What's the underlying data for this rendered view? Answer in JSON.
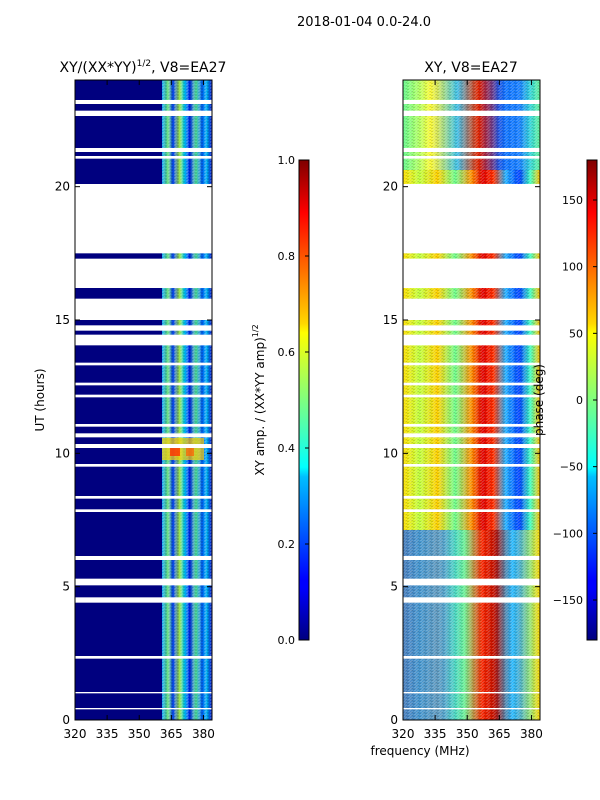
{
  "suptitle": "2018-01-04 0.0-24.0",
  "xlabel_shared": "frequency (MHz)",
  "colors": {
    "background": "#00007f",
    "gap": "#ffffff"
  },
  "chart_data": [
    {
      "type": "heatmap",
      "title": "XY/(XX*YY)^1/2, V8=EA27",
      "title_main": "XY/(XX*YY)",
      "title_sup": "1/2",
      "title_suffix": ", V8=EA27",
      "xlabel": "",
      "ylabel": "UT (hours)",
      "x_ticks": [
        320,
        335,
        350,
        365,
        380
      ],
      "y_ticks": [
        0,
        5,
        10,
        15,
        20
      ],
      "xlim": [
        320,
        384
      ],
      "ylim": [
        0,
        24
      ],
      "colorbar": {
        "label_main": "XY amp. / (XX*YY amp)",
        "label_sup": "1/2",
        "ticks": [
          0.0,
          0.2,
          0.4,
          0.6,
          0.8,
          1.0
        ],
        "range": [
          0.0,
          1.0
        ]
      },
      "description": "Normalized cross-correlation amplitude vs frequency and UT; mostly ~0 with elevated values in 361-378 MHz band"
    },
    {
      "type": "heatmap",
      "title": "XY, V8=EA27",
      "xlabel": "",
      "ylabel": "",
      "x_ticks": [
        320,
        335,
        350,
        365,
        380
      ],
      "y_ticks": [
        0,
        5,
        10,
        15,
        20
      ],
      "xlim": [
        320,
        384
      ],
      "ylim": [
        0,
        24
      ],
      "colorbar": {
        "label": "phase (deg)",
        "ticks": [
          -150,
          -100,
          -50,
          0,
          50,
          100,
          150
        ],
        "range": [
          -180,
          180
        ]
      },
      "description": "Cross-correlation phase vs frequency and UT"
    }
  ],
  "data_gaps_hours": [
    [
      23.1,
      23.25
    ],
    [
      22.65,
      22.85
    ],
    [
      21.3,
      21.45
    ],
    [
      21.05,
      21.15
    ],
    [
      17.5,
      20.1
    ],
    [
      16.2,
      17.3
    ],
    [
      15.0,
      15.8
    ],
    [
      14.6,
      14.8
    ],
    [
      14.05,
      14.45
    ],
    [
      13.3,
      13.4
    ],
    [
      12.55,
      12.65
    ],
    [
      12.1,
      12.2
    ],
    [
      11.0,
      11.1
    ],
    [
      10.6,
      10.75
    ],
    [
      10.2,
      10.35
    ],
    [
      9.5,
      9.6
    ],
    [
      8.3,
      8.4
    ],
    [
      7.8,
      7.9
    ],
    [
      6.0,
      6.15
    ],
    [
      5.05,
      5.3
    ],
    [
      4.4,
      4.6
    ],
    [
      2.3,
      2.4
    ],
    [
      1.0,
      1.05
    ],
    [
      0.4,
      0.45
    ]
  ]
}
